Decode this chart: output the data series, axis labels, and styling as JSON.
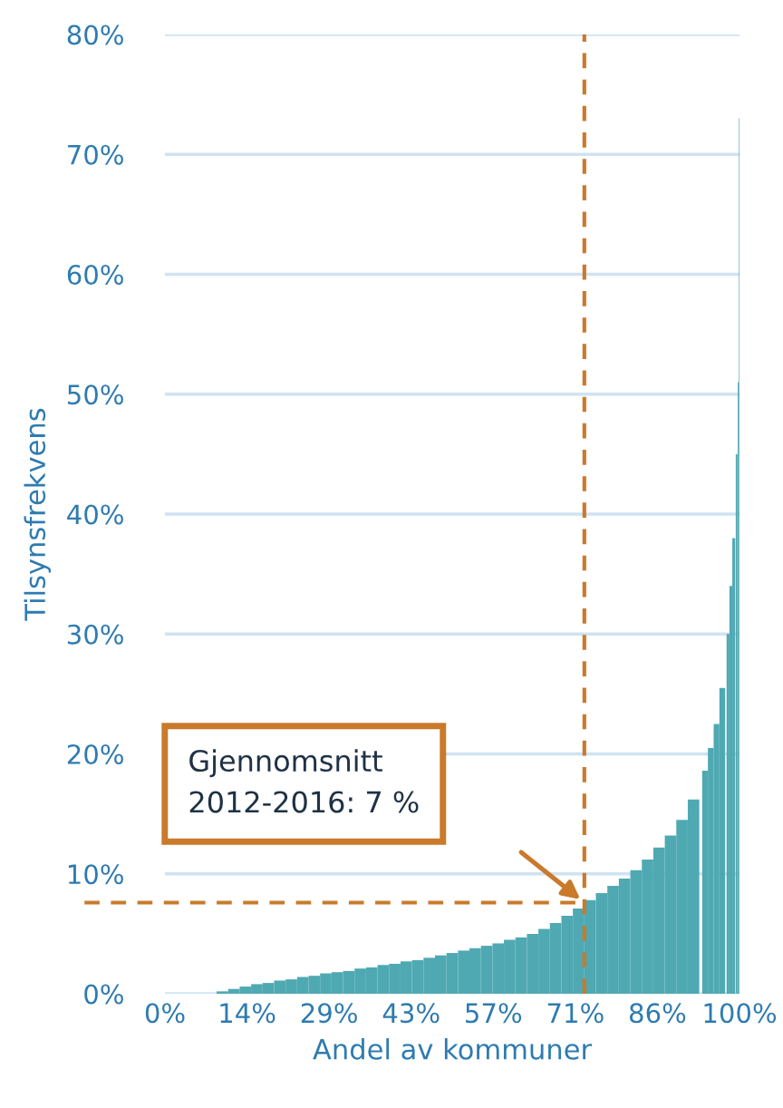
{
  "chart_data": {
    "type": "bar",
    "xlabel": "Andel av kommuner",
    "ylabel": "Tilsynsfrekvens",
    "x": [
      10,
      12,
      14,
      16,
      18,
      20,
      22,
      24,
      26,
      28,
      30,
      32,
      34,
      36,
      38,
      40,
      42,
      44,
      46,
      48,
      50,
      52,
      54,
      56,
      58,
      60,
      62,
      64,
      66,
      68,
      70,
      72,
      74,
      76,
      78,
      80,
      82,
      84,
      86,
      88,
      90,
      92,
      94,
      95,
      96,
      97,
      98,
      98.5,
      99,
      99.5,
      99.8,
      100
    ],
    "values": [
      0.2,
      0.4,
      0.6,
      0.8,
      0.9,
      1.1,
      1.2,
      1.4,
      1.5,
      1.7,
      1.8,
      1.9,
      2.1,
      2.2,
      2.4,
      2.5,
      2.7,
      2.8,
      3.0,
      3.2,
      3.4,
      3.6,
      3.8,
      4.0,
      4.2,
      4.5,
      4.7,
      5.0,
      5.4,
      5.9,
      6.5,
      7.1,
      7.8,
      8.4,
      9.0,
      9.6,
      10.3,
      11.2,
      12.2,
      13.2,
      14.5,
      16.2,
      18.6,
      20.5,
      22.5,
      25.5,
      30,
      34,
      38,
      45,
      51,
      73
    ],
    "color": "#4fa9b3",
    "xlim": [
      0,
      100
    ],
    "xticks": [
      {
        "value": 0,
        "label": "0%"
      },
      {
        "value": 14.29,
        "label": "14%"
      },
      {
        "value": 28.57,
        "label": "29%"
      },
      {
        "value": 42.86,
        "label": "43%"
      },
      {
        "value": 57.14,
        "label": "57%"
      },
      {
        "value": 71.43,
        "label": "71%"
      },
      {
        "value": 85.71,
        "label": "86%"
      },
      {
        "value": 100,
        "label": "100%"
      }
    ],
    "ylim": [
      0,
      80
    ],
    "yticks": [
      {
        "value": 0,
        "label": "0%"
      },
      {
        "value": 10,
        "label": "10%"
      },
      {
        "value": 20,
        "label": "20%"
      },
      {
        "value": 30,
        "label": "30%"
      },
      {
        "value": 40,
        "label": "40%"
      },
      {
        "value": 50,
        "label": "50%"
      },
      {
        "value": 60,
        "label": "60%"
      },
      {
        "value": 70,
        "label": "70%"
      },
      {
        "value": 80,
        "label": "80%"
      }
    ],
    "grid": "y",
    "ref_lines": [
      {
        "axis": "x",
        "value": 73,
        "color": "#c97a2a",
        "line_style": "dashed"
      },
      {
        "axis": "y",
        "value": 7.6,
        "color": "#c97a2a",
        "line_style": "dashed"
      }
    ],
    "annotations": [
      "Gjennomsnitt\n2012-2016: 7 %"
    ]
  }
}
